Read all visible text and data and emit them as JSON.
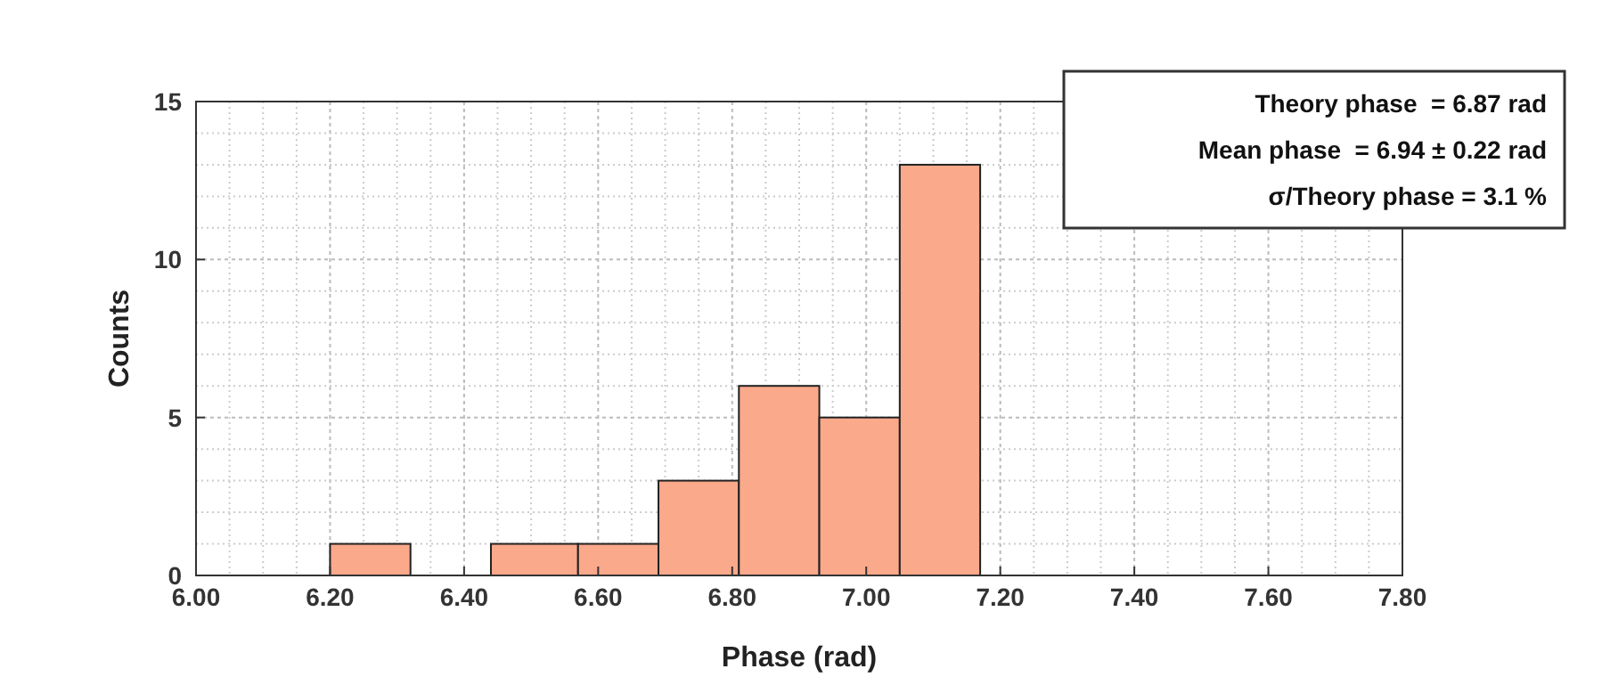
{
  "chart_data": {
    "type": "histogram",
    "xlabel": "Phase (rad)",
    "ylabel": "Counts",
    "bins": [
      6.2,
      6.32,
      6.44,
      6.57,
      6.69,
      6.81,
      6.93,
      7.05,
      7.17
    ],
    "values": [
      1,
      0,
      1,
      1,
      3,
      6,
      5,
      13
    ],
    "color": "#fba98b",
    "xlim": [
      6.0,
      7.8
    ],
    "xticks": [
      {
        "value": 6.0,
        "label": "6.00"
      },
      {
        "value": 6.2,
        "label": "6.20"
      },
      {
        "value": 6.4,
        "label": "6.40"
      },
      {
        "value": 6.6,
        "label": "6.60"
      },
      {
        "value": 6.8,
        "label": "6.80"
      },
      {
        "value": 7.0,
        "label": "7.00"
      },
      {
        "value": 7.2,
        "label": "7.20"
      },
      {
        "value": 7.4,
        "label": "7.40"
      },
      {
        "value": 7.6,
        "label": "7.60"
      },
      {
        "value": 7.8,
        "label": "7.80"
      }
    ],
    "ylim": [
      0,
      15
    ],
    "yticks": [
      0,
      5,
      10,
      15
    ],
    "grid": true,
    "annotations": [
      "Theory phase  = 6.87 rad",
      "Mean phase  = 6.94 ± 0.22 rad",
      "σ/Theory phase = 3.1 %"
    ]
  }
}
